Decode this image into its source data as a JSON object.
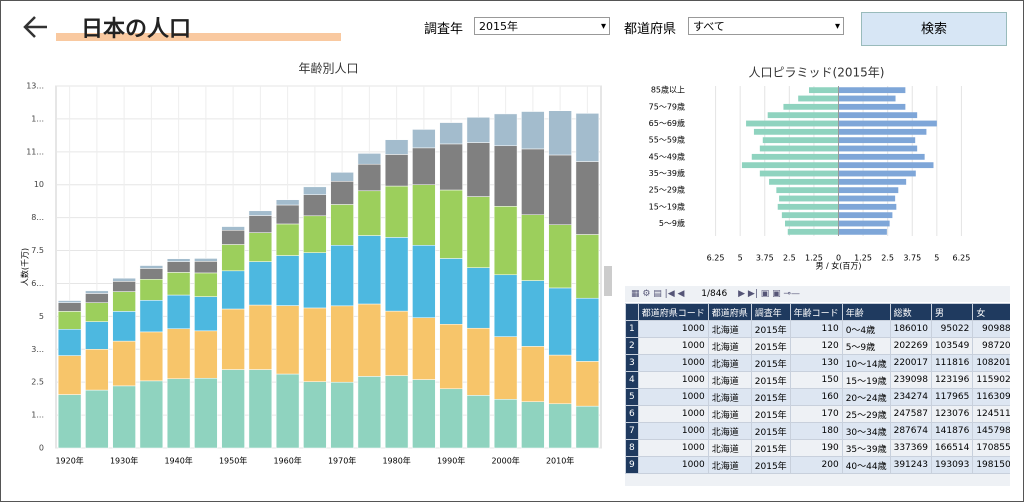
{
  "header": {
    "title": "日本の人口",
    "year_label": "調査年",
    "year_value": "2015年",
    "pref_label": "都道府県",
    "pref_value": "すべて",
    "search": "検索"
  },
  "chart_data": [
    {
      "type": "stacked_bar",
      "title": "年齢別人口",
      "y_label": "人数(千万)",
      "categories": [
        "1920年",
        null,
        "1930年",
        null,
        "1940年",
        null,
        "1950年",
        null,
        "1960年",
        null,
        "1970年",
        null,
        "1980年",
        null,
        "1990年",
        null,
        "2000年",
        null,
        "2010年",
        null
      ],
      "series": [
        {
          "color": "#8fd3bf",
          "values": [
            2.03,
            2.2,
            2.36,
            2.55,
            2.63,
            2.65,
            2.98,
            2.98,
            2.81,
            2.52,
            2.5,
            2.72,
            2.75,
            2.6,
            2.25,
            2.0,
            1.85,
            1.76,
            1.68,
            1.59
          ]
        },
        {
          "color": "#f7c56a",
          "values": [
            1.48,
            1.55,
            1.7,
            1.86,
            1.9,
            1.8,
            2.3,
            2.45,
            2.6,
            2.8,
            2.9,
            2.75,
            2.45,
            2.35,
            2.45,
            2.55,
            2.38,
            2.1,
            1.85,
            1.7
          ]
        },
        {
          "color": "#4db8e0",
          "values": [
            1.0,
            1.05,
            1.13,
            1.2,
            1.28,
            1.3,
            1.45,
            1.65,
            1.9,
            2.1,
            2.3,
            2.6,
            2.8,
            2.75,
            2.5,
            2.3,
            2.35,
            2.5,
            2.55,
            2.4
          ]
        },
        {
          "color": "#9ccf5c",
          "values": [
            0.68,
            0.72,
            0.75,
            0.8,
            0.86,
            0.9,
            1.0,
            1.1,
            1.2,
            1.4,
            1.55,
            1.7,
            1.95,
            2.3,
            2.6,
            2.7,
            2.6,
            2.5,
            2.4,
            2.42
          ]
        },
        {
          "color": "#808080",
          "values": [
            0.33,
            0.35,
            0.39,
            0.41,
            0.41,
            0.44,
            0.54,
            0.65,
            0.72,
            0.8,
            0.88,
            1.01,
            1.2,
            1.4,
            1.75,
            2.05,
            2.3,
            2.5,
            2.65,
            2.77
          ]
        },
        {
          "color": "#a3bccd",
          "values": [
            0.08,
            0.1,
            0.12,
            0.11,
            0.11,
            0.11,
            0.14,
            0.18,
            0.2,
            0.3,
            0.34,
            0.41,
            0.56,
            0.7,
            0.81,
            0.96,
            1.21,
            1.42,
            1.68,
            1.83
          ]
        }
      ],
      "ylim": [
        0,
        13.75
      ],
      "yticks": [
        0,
        {
          "value": 1.25,
          "label": "1..."
        },
        2.5,
        {
          "value": 3.75,
          "label": "3..."
        },
        5,
        {
          "value": 6.25,
          "label": "6..."
        },
        7.5,
        {
          "value": 8.75,
          "label": "8..."
        },
        10,
        {
          "value": 11.25,
          "label": "11..."
        },
        {
          "value": 12.5,
          "label": "1..."
        },
        {
          "value": 13.75,
          "label": "13..."
        }
      ],
      "grid": true
    },
    {
      "type": "pyramid",
      "title": "人口ピラミッド(2015年)",
      "x_label": "男 / 女(百万)",
      "categories": [
        null,
        "5～9歳",
        null,
        "15～19歳",
        null,
        "25～29歳",
        null,
        "35～39歳",
        null,
        "45～49歳",
        null,
        "55～59歳",
        null,
        "65～69歳",
        null,
        "75～79歳",
        null,
        "85歳以上"
      ],
      "series": [
        {
          "color": "#8fd3bf",
          "values": [
            2.58,
            2.72,
            2.88,
            3.09,
            3.02,
            3.16,
            3.53,
            4.0,
            4.91,
            4.41,
            4.0,
            3.85,
            4.3,
            4.7,
            3.6,
            2.8,
            2.05,
            1.5
          ]
        },
        {
          "color": "#7ea6d8",
          "values": [
            2.46,
            2.6,
            2.74,
            2.94,
            2.88,
            3.04,
            3.44,
            3.93,
            4.83,
            4.38,
            4.0,
            3.9,
            4.47,
            5.0,
            4.0,
            3.4,
            2.9,
            3.4
          ]
        }
      ],
      "xlim": [
        -7.5,
        7.5
      ],
      "xticks": [
        {
          "value": -6.25,
          "label": "6.25"
        },
        {
          "value": -5,
          "label": "5"
        },
        {
          "value": -3.75,
          "label": "3.75"
        },
        {
          "value": -2.5,
          "label": "2.5"
        },
        {
          "value": -1.25,
          "label": "1.25"
        },
        0,
        1.25,
        2.5,
        3.75,
        5,
        6.25
      ],
      "grid": true
    }
  ],
  "pager": {
    "page": "1",
    "total": "/846"
  },
  "table": {
    "columns": [
      "",
      "都道府県コード",
      "都道府県",
      "調査年",
      "年齢コード",
      "年齢",
      "総数",
      "男",
      "女"
    ],
    "rows": [
      [
        1,
        1000,
        "北海道",
        "2015年",
        110,
        "0～4歳",
        186010,
        95022,
        90988
      ],
      [
        2,
        1000,
        "北海道",
        "2015年",
        120,
        "5～9歳",
        202269,
        103549,
        98720
      ],
      [
        3,
        1000,
        "北海道",
        "2015年",
        130,
        "10～14歳",
        220017,
        111816,
        108201
      ],
      [
        4,
        1000,
        "北海道",
        "2015年",
        150,
        "15～19歳",
        239098,
        123196,
        115902
      ],
      [
        5,
        1000,
        "北海道",
        "2015年",
        160,
        "20～24歳",
        234274,
        117965,
        116309
      ],
      [
        6,
        1000,
        "北海道",
        "2015年",
        170,
        "25～29歳",
        247587,
        123076,
        124511
      ],
      [
        7,
        1000,
        "北海道",
        "2015年",
        180,
        "30～34歳",
        287674,
        141876,
        145798
      ],
      [
        8,
        1000,
        "北海道",
        "2015年",
        190,
        "35～39歳",
        337369,
        166514,
        170855
      ],
      [
        9,
        1000,
        "北海道",
        "2015年",
        200,
        "40～44歳",
        391243,
        193093,
        198150
      ]
    ]
  }
}
